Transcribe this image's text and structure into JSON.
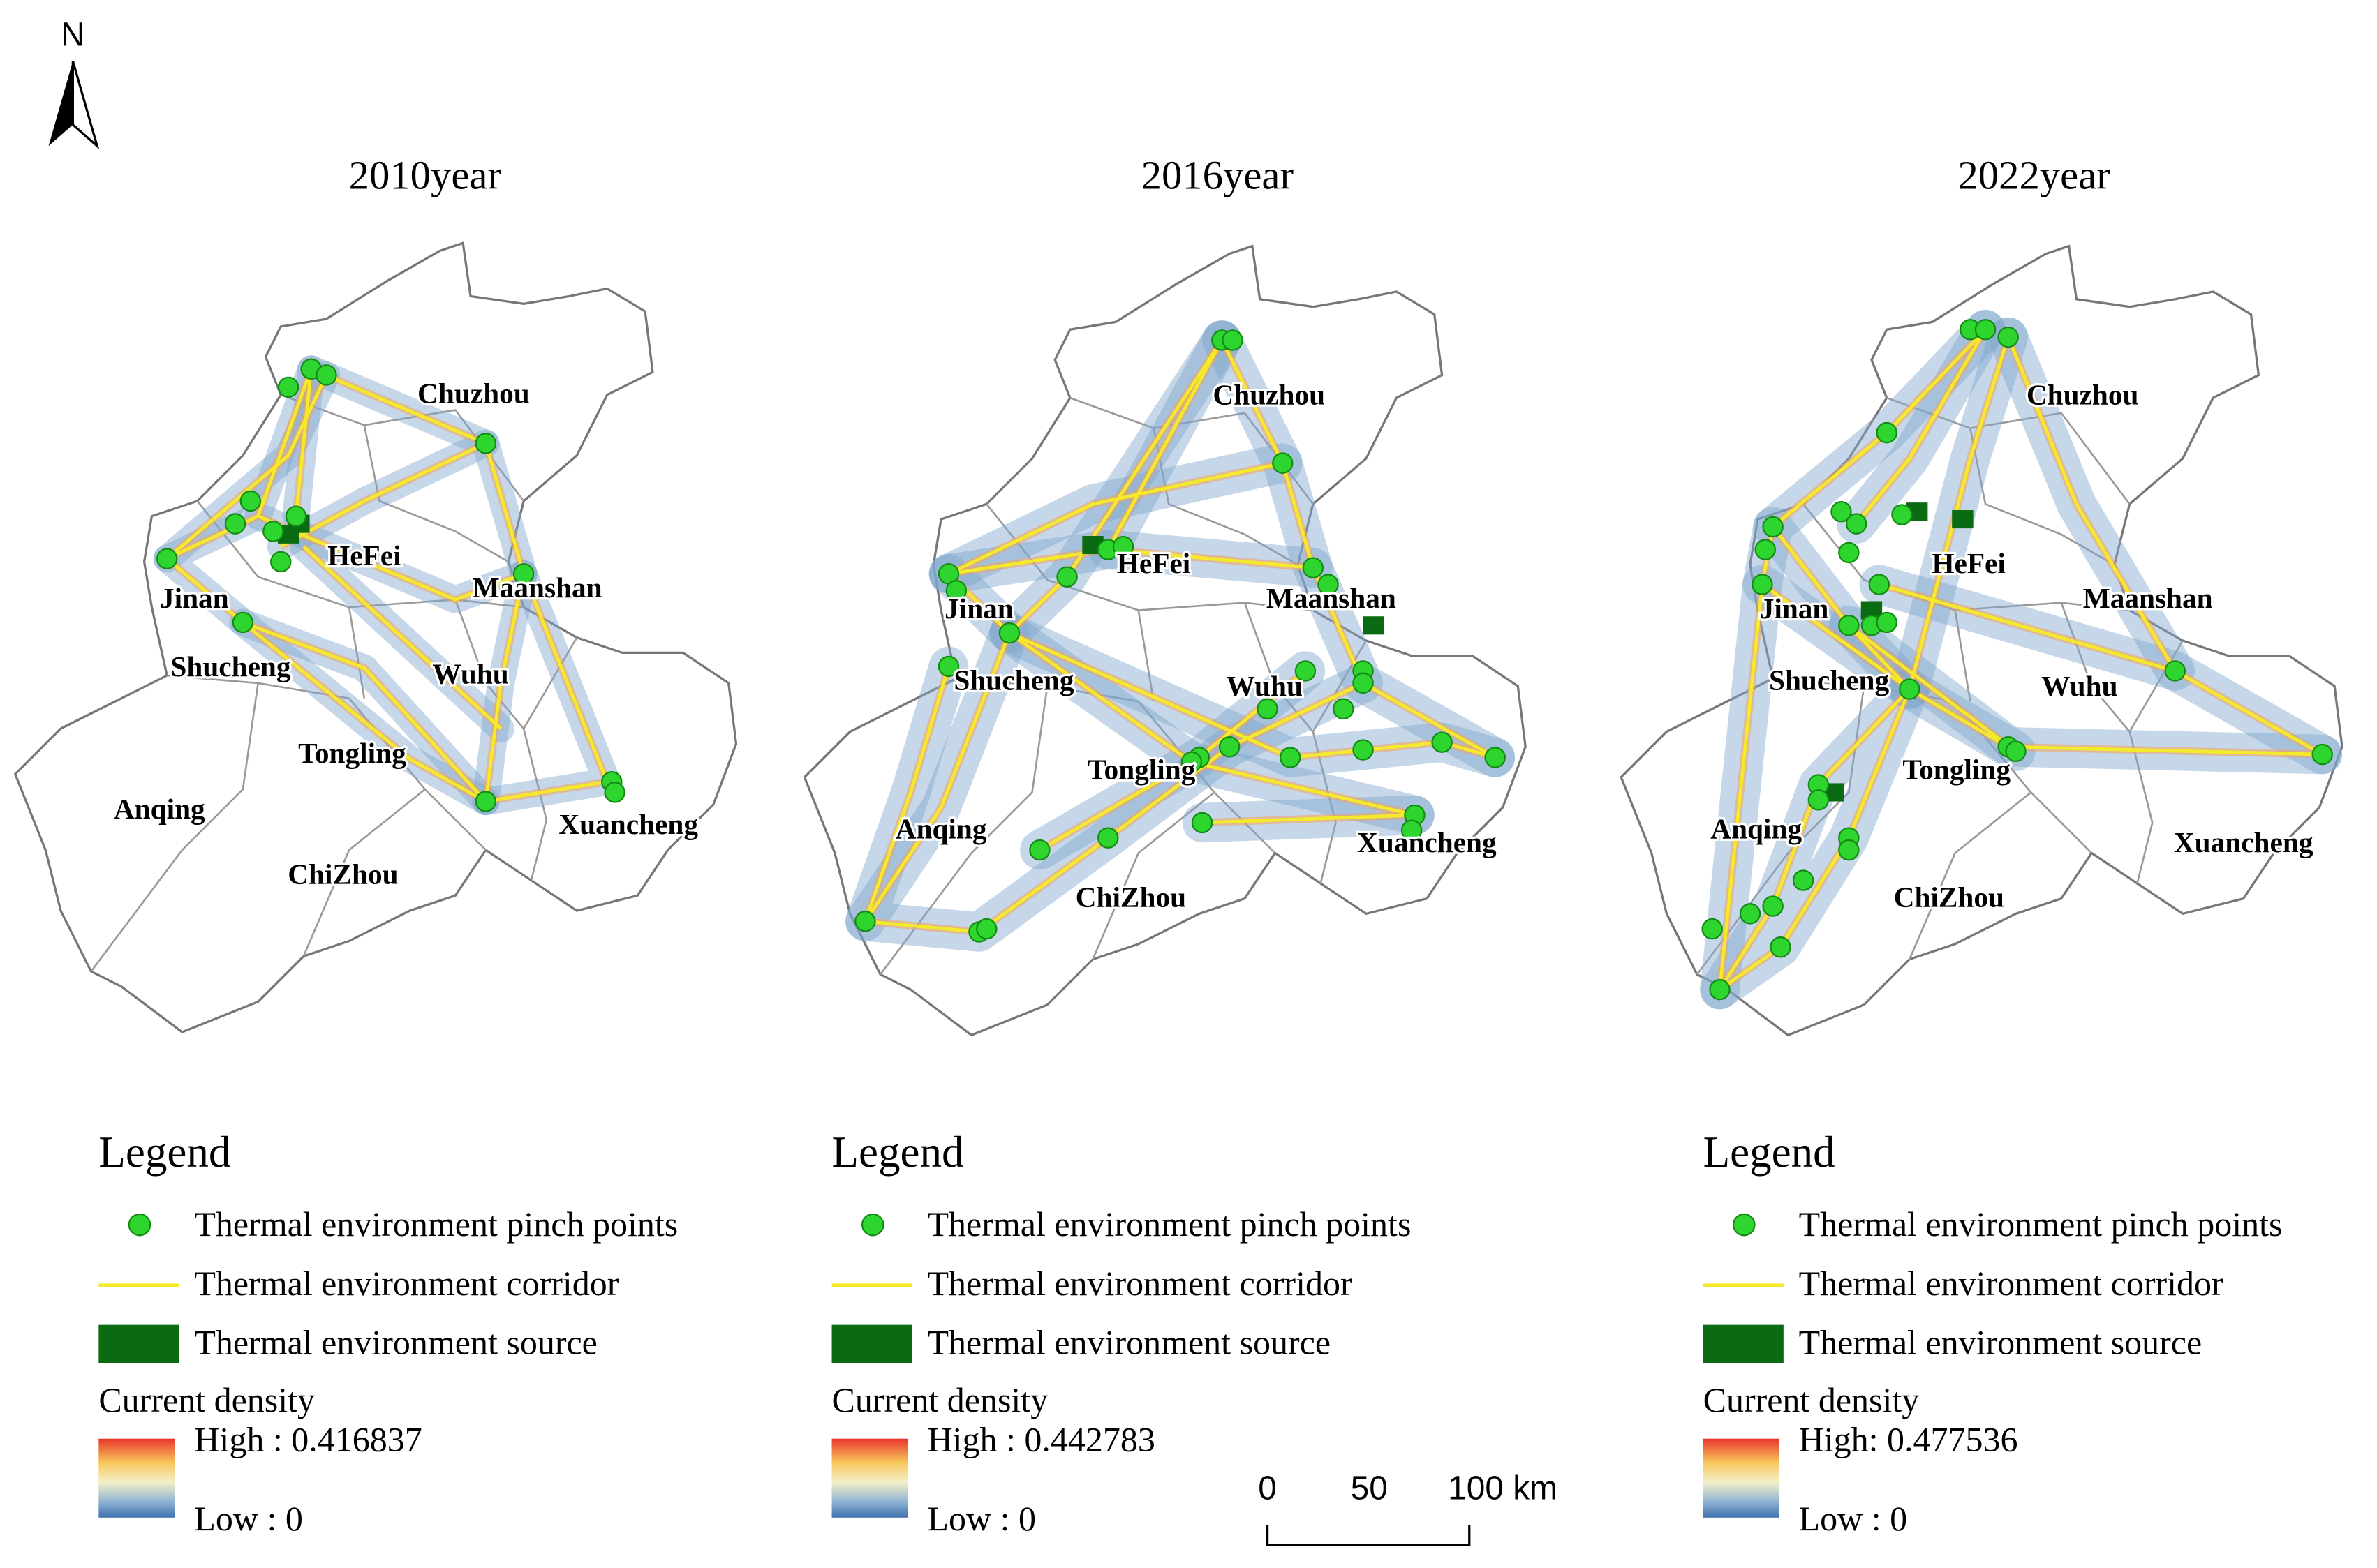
{
  "north_label": "N",
  "panels": [
    {
      "title": "2010year",
      "cities": [
        "Chuzhou",
        "HeFei",
        "Jinan",
        "Maanshan",
        "Shucheng",
        "Wuhu",
        "Tongling",
        "Anqing",
        "Xuancheng",
        "ChiZhou"
      ],
      "legend": {
        "title": "Legend",
        "items": [
          "Thermal environment pinch points",
          "Thermal environment corridor",
          "Thermal environment source"
        ],
        "density_title": "Current density",
        "high": "High : 0.416837",
        "low": "Low : 0"
      }
    },
    {
      "title": "2016year",
      "cities": [
        "Chuzhou",
        "HeFei",
        "Jinan",
        "Maanshan",
        "Shucheng",
        "Wuhu",
        "Tongling",
        "Anqing",
        "Xuancheng",
        "ChiZhou"
      ],
      "legend": {
        "title": "Legend",
        "items": [
          "Thermal environment pinch points",
          "Thermal environment corridor",
          "Thermal environment source"
        ],
        "density_title": "Current density",
        "high": "High : 0.442783",
        "low": "Low : 0"
      }
    },
    {
      "title": "2022year",
      "cities": [
        "Chuzhou",
        "HeFei",
        "Jinan",
        "Maanshan",
        "Shucheng",
        "Wuhu",
        "Tongling",
        "Anqing",
        "Xuancheng",
        "ChiZhou"
      ],
      "legend": {
        "title": "Legend",
        "items": [
          "Thermal environment pinch points",
          "Thermal environment corridor",
          "Thermal environment source"
        ],
        "density_title": "Current density",
        "high": "High: 0.477536",
        "low": "Low : 0"
      }
    }
  ],
  "scale_bar": {
    "labels": [
      "0",
      "50",
      "100 km"
    ]
  }
}
